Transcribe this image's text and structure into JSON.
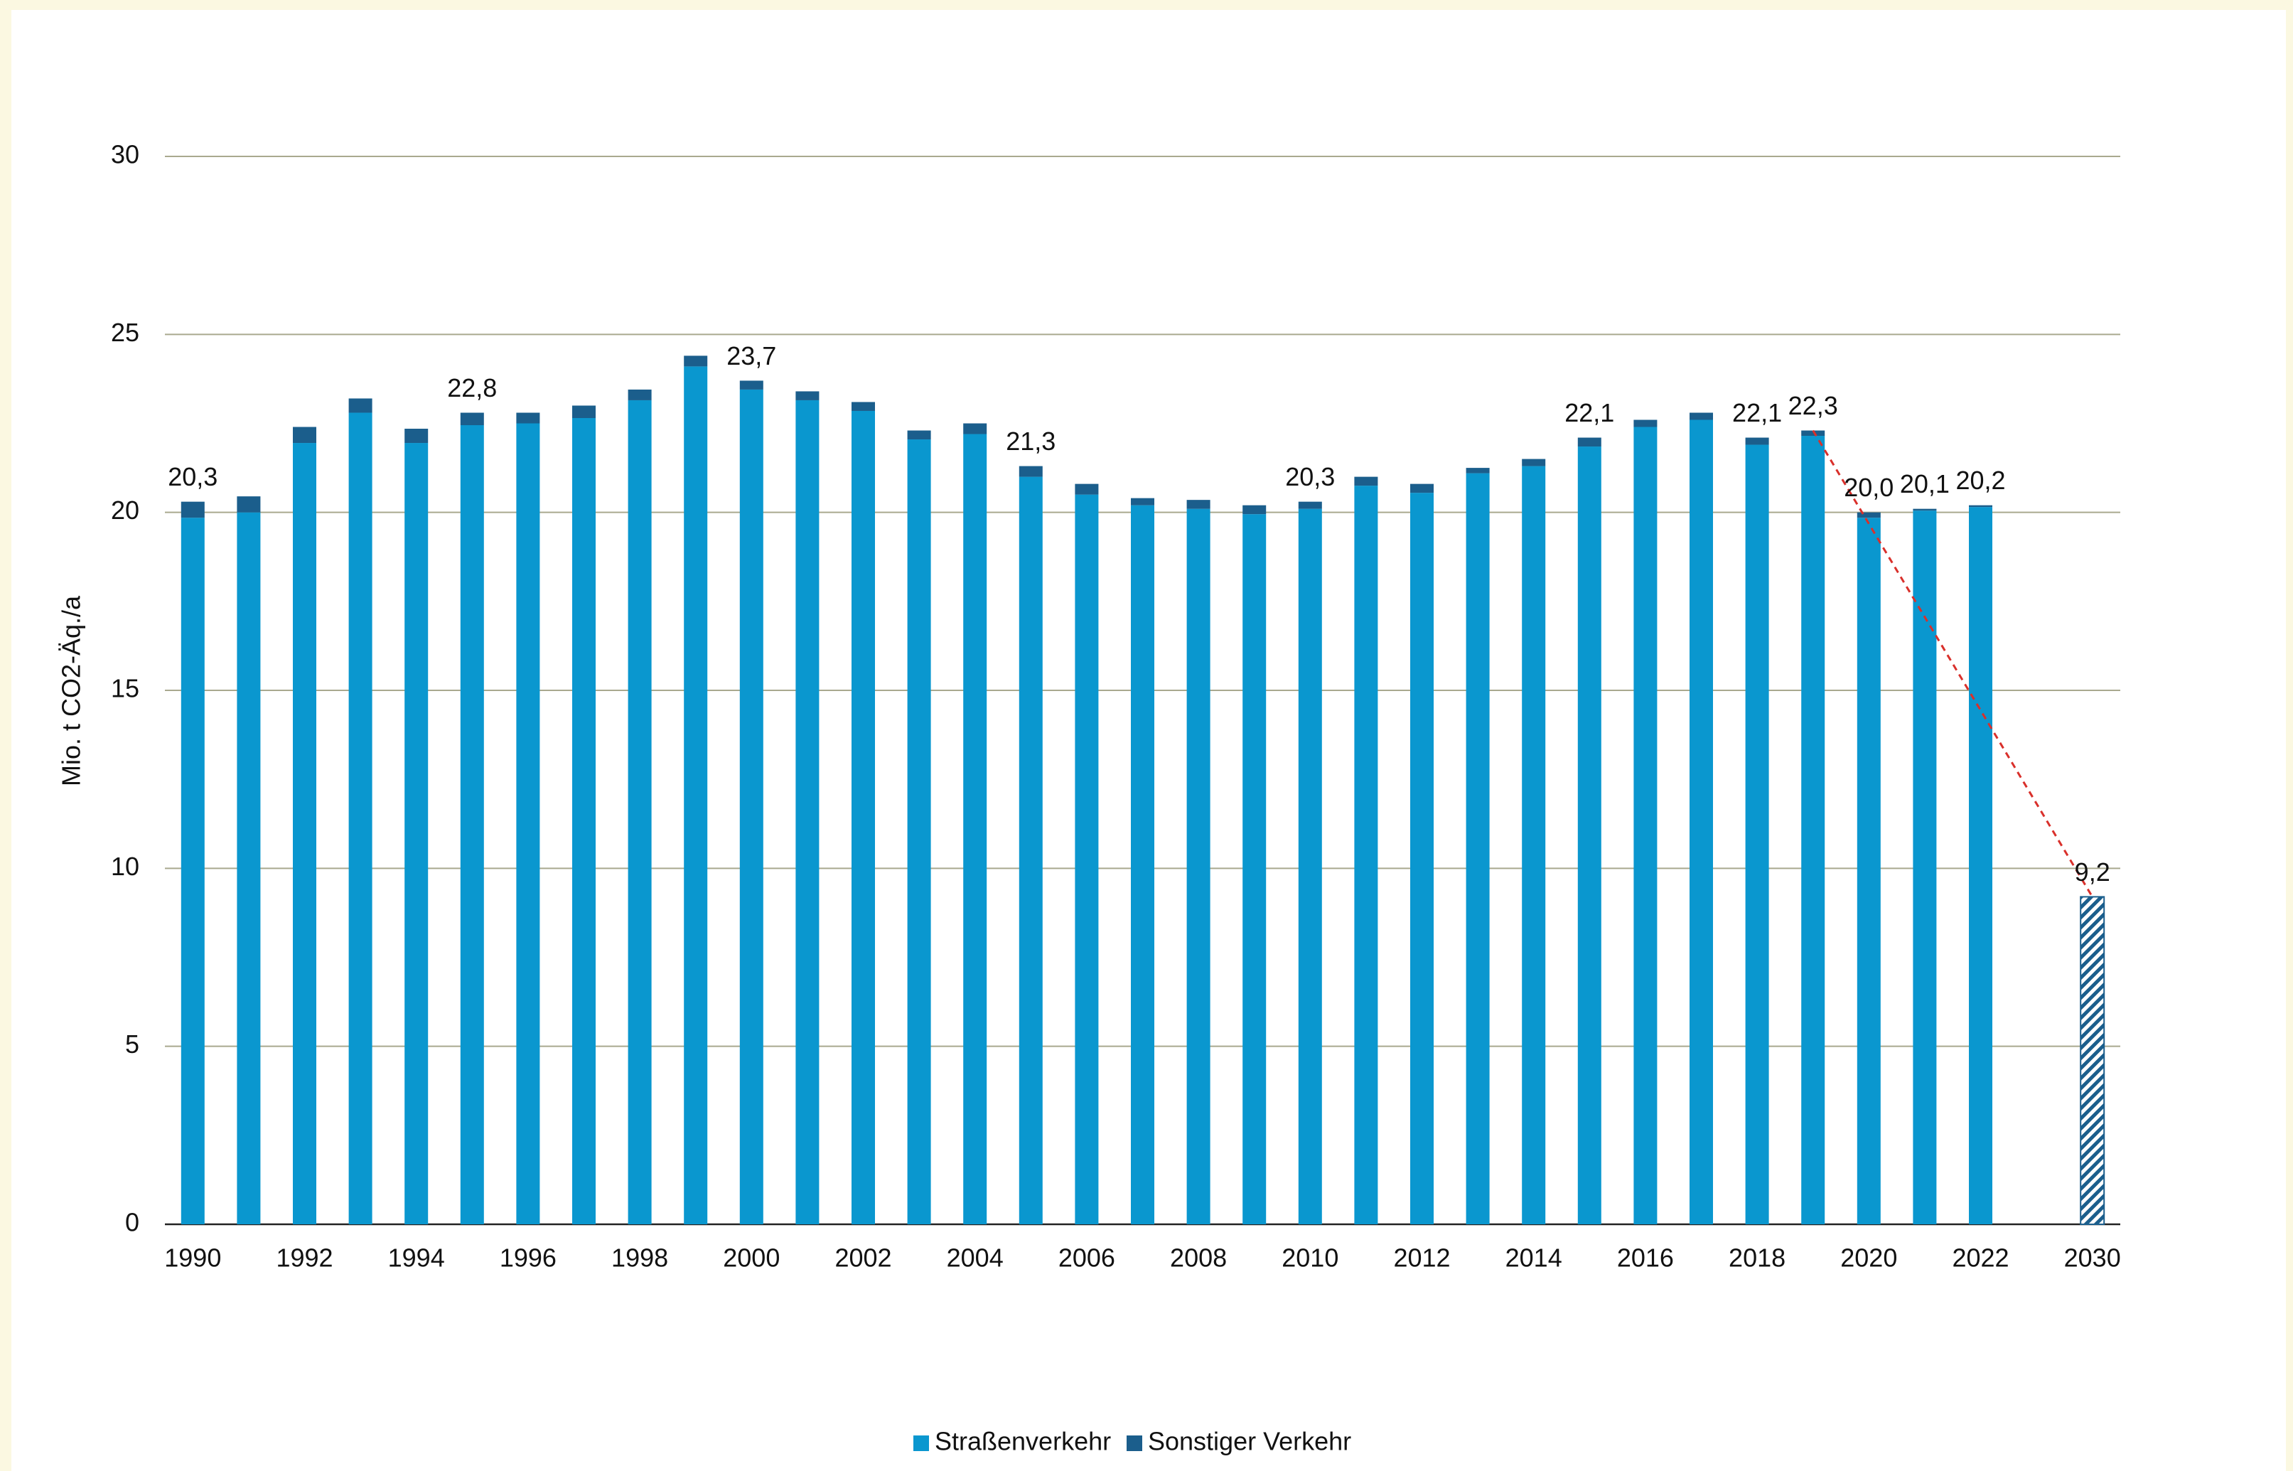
{
  "chart_data": {
    "type": "stacked_bar",
    "y_label": "Mio. t CO2-Äq./a",
    "categories": [
      "1990",
      null,
      "1992",
      null,
      "1994",
      null,
      "1996",
      null,
      "1998",
      null,
      "2000",
      null,
      "2002",
      null,
      "2004",
      null,
      "2006",
      null,
      "2008",
      null,
      "2010",
      null,
      "2012",
      null,
      "2014",
      null,
      "2016",
      null,
      "2018",
      null,
      "2020",
      null,
      "2022",
      null,
      "2030"
    ],
    "series": [
      {
        "name": "Straßenverkehr",
        "color": "#0a97cf",
        "values": [
          19.85,
          20.0,
          21.95,
          22.8,
          21.95,
          22.45,
          22.5,
          22.65,
          23.15,
          24.1,
          23.45,
          23.15,
          22.85,
          22.05,
          22.2,
          21.0,
          20.5,
          20.2,
          20.1,
          19.95,
          20.1,
          20.75,
          20.55,
          21.1,
          21.3,
          21.85,
          22.4,
          22.6,
          21.9,
          22.15,
          19.85,
          20.05,
          20.15,
          null,
          null
        ]
      },
      {
        "name": "Sonstiger Verkehr",
        "color": "#1b5e8c",
        "values": [
          0.45,
          0.45,
          0.45,
          0.4,
          0.4,
          0.35,
          0.3,
          0.35,
          0.3,
          0.3,
          0.25,
          0.25,
          0.25,
          0.25,
          0.3,
          0.3,
          0.3,
          0.2,
          0.25,
          0.25,
          0.2,
          0.25,
          0.25,
          0.15,
          0.2,
          0.25,
          0.2,
          0.2,
          0.2,
          0.15,
          0.15,
          0.05,
          0.05,
          null,
          null
        ]
      },
      {
        "color": "#1b5e8c",
        "pattern": "hatch",
        "values": [
          null,
          null,
          null,
          null,
          null,
          null,
          null,
          null,
          null,
          null,
          null,
          null,
          null,
          null,
          null,
          null,
          null,
          null,
          null,
          null,
          null,
          null,
          null,
          null,
          null,
          null,
          null,
          null,
          null,
          null,
          null,
          null,
          null,
          null,
          9.2
        ]
      }
    ],
    "totals": {
      "values": [
        20.3,
        null,
        null,
        null,
        null,
        22.8,
        null,
        null,
        null,
        null,
        23.7,
        null,
        null,
        null,
        null,
        21.3,
        null,
        null,
        null,
        null,
        20.3,
        null,
        null,
        null,
        null,
        22.1,
        null,
        null,
        22.1,
        22.3,
        20.0,
        20.1,
        20.2,
        null,
        9.2
      ],
      "value_labels": [
        "20,3",
        null,
        null,
        null,
        null,
        "22,8",
        null,
        null,
        null,
        null,
        "23,7",
        null,
        null,
        null,
        null,
        "21,3",
        null,
        null,
        null,
        null,
        "20,3",
        null,
        null,
        null,
        null,
        "22,1",
        null,
        null,
        "22,1",
        "22,3",
        "20,0",
        "20,1",
        "20,2",
        null,
        "9,2"
      ]
    },
    "trend": {
      "values": [
        22.3,
        9.2
      ],
      "color": "#d9302b"
    },
    "ylim": [
      0,
      30
    ],
    "yticks": [
      0,
      5,
      10,
      15,
      20,
      25,
      30
    ],
    "grid": true,
    "legend": "bottom"
  }
}
